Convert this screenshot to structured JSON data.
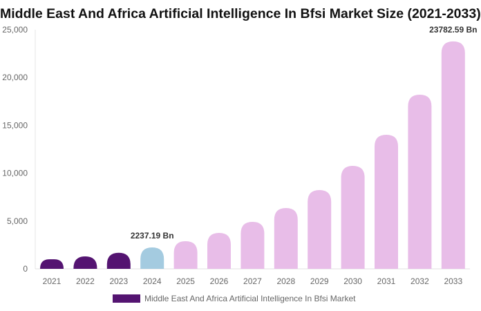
{
  "chart_data": {
    "type": "bar",
    "title": "Middle East And Africa Artificial Intelligence In Bfsi Market Size (2021-2033)",
    "categories": [
      "2021",
      "2022",
      "2023",
      "2024",
      "2025",
      "2026",
      "2027",
      "2028",
      "2029",
      "2030",
      "2031",
      "2032",
      "2033"
    ],
    "series": [
      {
        "name": "Middle East And Africa Artificial Intelligence In Bfsi Market",
        "values": [
          1000,
          1300,
          1680,
          2237.19,
          2890,
          3760,
          4910,
          6360,
          8240,
          10770,
          14020,
          18210,
          23782.59
        ]
      }
    ],
    "data_labels": [
      {
        "category": "2024",
        "text": "2237.19 Bn"
      },
      {
        "category": "2033",
        "text": "23782.59 Bn"
      }
    ],
    "ylim": [
      0,
      25000
    ],
    "yticks": [
      "0",
      "5,000",
      "10,000",
      "15,000",
      "20,000",
      "25,000"
    ],
    "ytick_values": [
      0,
      5000,
      10000,
      15000,
      20000,
      25000
    ],
    "xlabel": "",
    "ylabel": "",
    "grid": false,
    "legend": "bottom",
    "colors": {
      "historical": "#541471",
      "current": "#a4cbe0",
      "forecast": "#e8bde8",
      "legend": "#541471"
    }
  }
}
